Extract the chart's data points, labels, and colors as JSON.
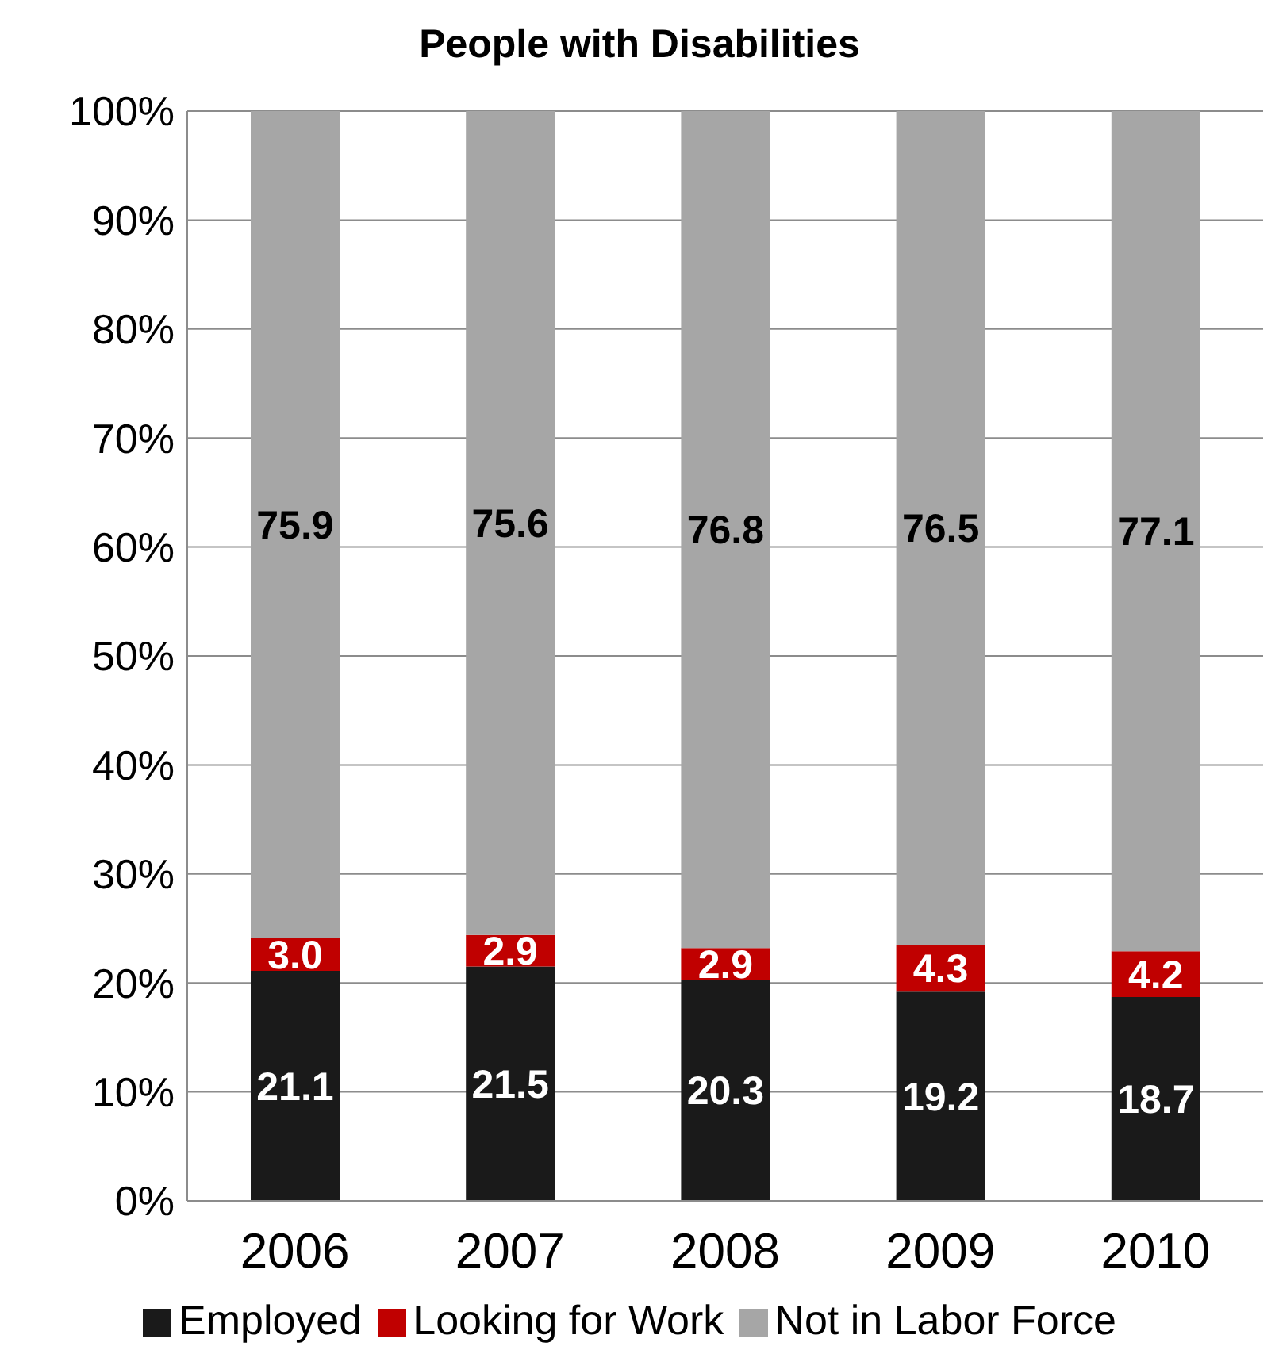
{
  "chart_data": {
    "type": "bar",
    "title": "People with Disabilities",
    "stacked": true,
    "categories": [
      "2006",
      "2007",
      "2008",
      "2009",
      "2010"
    ],
    "series": [
      {
        "name": "Employed",
        "color": "#1a1a1a",
        "values": [
          21.1,
          21.5,
          20.3,
          19.2,
          18.7
        ],
        "value_labels": [
          "21.1",
          "21.5",
          "20.3",
          "19.2",
          "18.7"
        ]
      },
      {
        "name": "Looking for Work",
        "color": "#c00000",
        "values": [
          3.0,
          2.9,
          2.9,
          4.3,
          4.2
        ],
        "value_labels": [
          "3.0",
          "2.9",
          "2.9",
          "4.3",
          "4.2"
        ]
      },
      {
        "name": "Not in Labor Force",
        "color": "#a6a6a6",
        "values": [
          75.9,
          75.6,
          76.8,
          76.5,
          77.1
        ],
        "value_labels": [
          "75.9",
          "75.6",
          "76.8",
          "76.5",
          "77.1"
        ]
      }
    ],
    "ylim": [
      0,
      100
    ],
    "yticks": [
      {
        "value": 0,
        "label": "0%"
      },
      {
        "value": 10,
        "label": "10%"
      },
      {
        "value": 20,
        "label": "20%"
      },
      {
        "value": 30,
        "label": "30%"
      },
      {
        "value": 40,
        "label": "40%"
      },
      {
        "value": 50,
        "label": "50%"
      },
      {
        "value": 60,
        "label": "60%"
      },
      {
        "value": 70,
        "label": "70%"
      },
      {
        "value": 80,
        "label": "80%"
      },
      {
        "value": 90,
        "label": "90%"
      },
      {
        "value": 100,
        "label": "100%"
      }
    ],
    "grid": "y",
    "legend": "bottom"
  }
}
